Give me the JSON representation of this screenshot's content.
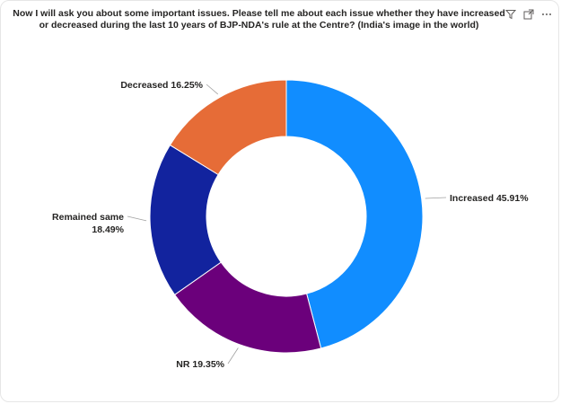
{
  "visual": {
    "title": "Now I will ask you about some important issues. Please tell me about each issue whether they have increased or decreased during the last 10 years of BJP-NDA's rule at the Centre? (India's image in the world)",
    "toolbar_icons": [
      "filter-icon",
      "focus-mode-icon",
      "more-options-icon"
    ]
  },
  "chart_data": {
    "type": "pie",
    "subtype": "donut",
    "slices": [
      {
        "label": "Increased",
        "value": 45.91,
        "display": "Increased 45.91%",
        "color": "#118DFF"
      },
      {
        "label": "NR",
        "value": 19.35,
        "display": "NR 19.35%",
        "color": "#6B007B"
      },
      {
        "label": "Remained same",
        "value": 18.49,
        "display": "Remained same 18.49%",
        "color": "#12239E"
      },
      {
        "label": "Decreased",
        "value": 16.25,
        "display": "Decreased 16.25%",
        "color": "#E66C37"
      }
    ],
    "legend": "none",
    "labels": "outside with leader lines"
  }
}
